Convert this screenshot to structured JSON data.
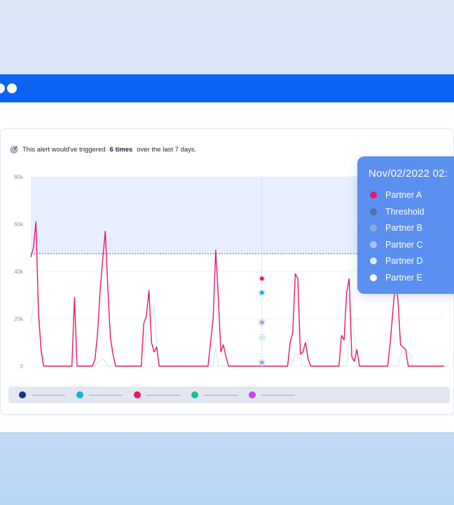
{
  "alert": {
    "prefix": "This alert would've triggered",
    "count": "6 times",
    "suffix": "over the last 7 days.",
    "icon": "target-icon"
  },
  "tooltip": {
    "title": "Nov/02/2022 02:",
    "rows": [
      {
        "label": "Partner A",
        "color": "#e6176e"
      },
      {
        "label": "Threshold",
        "color": "#55719e"
      },
      {
        "label": "Partner B",
        "color": "#8fa8d8"
      },
      {
        "label": "Partner C",
        "color": "#a9c2f4"
      },
      {
        "label": "Partner D",
        "color": "#dce8fc"
      },
      {
        "label": "Partner E",
        "color": "#ffffff"
      }
    ]
  },
  "legend": [
    {
      "color": "#15309a"
    },
    {
      "color": "#11aef0"
    },
    {
      "color": "#e6176e"
    },
    {
      "color": "#13c29c"
    },
    {
      "color": "#c347e8"
    }
  ],
  "chart_data": {
    "type": "line",
    "yticks": [
      "0",
      "20k",
      "40k",
      "60k",
      "80k"
    ],
    "ylim": [
      0,
      80000
    ],
    "threshold": 47500,
    "hover_index": 90,
    "hover_values": [
      37000,
      31000,
      18500,
      12000,
      1500
    ],
    "hover_colors": [
      "#e6176e",
      "#11aef0",
      "#8fa8d8",
      "#c6eedf",
      "#8fa8d8"
    ],
    "series": [
      {
        "name": "Partner A",
        "color": "#e6176e",
        "values": [
          46000,
          50000,
          61000,
          22000,
          7000,
          0,
          0,
          0,
          0,
          0,
          0,
          0,
          0,
          0,
          0,
          0,
          0,
          29000,
          0,
          0,
          0,
          0,
          0,
          0,
          0,
          3000,
          14000,
          32000,
          45000,
          57000,
          33000,
          12000,
          5000,
          0,
          0,
          0,
          0,
          0,
          0,
          0,
          0,
          0,
          0,
          0,
          18000,
          21000,
          32000,
          10000,
          6000,
          8000,
          0,
          0,
          0,
          0,
          0,
          0,
          0,
          0,
          0,
          0,
          0,
          0,
          0,
          0,
          0,
          0,
          0,
          0,
          0,
          0,
          10000,
          20000,
          49000,
          30000,
          6000,
          9000,
          4000,
          0,
          0,
          0,
          0,
          0,
          0,
          0,
          0,
          0,
          0,
          0,
          0,
          0,
          0,
          0,
          0,
          0,
          0,
          0,
          0,
          0,
          0,
          0,
          0,
          10000,
          14000,
          39000,
          37000,
          5000,
          6000,
          10000,
          3000,
          0,
          0,
          0,
          0,
          0,
          0,
          0,
          0,
          0,
          0,
          0,
          0,
          13000,
          11000,
          31000,
          37000,
          4000,
          2000,
          7000,
          0,
          0,
          0,
          0,
          0,
          0,
          0,
          0,
          0,
          0,
          0,
          0,
          10000,
          23000,
          36000,
          28000,
          9000,
          8000,
          7000,
          0,
          0,
          0,
          0,
          0,
          0,
          0,
          0,
          0,
          0,
          0,
          0,
          0,
          0,
          0
        ]
      },
      {
        "name": "Partner C",
        "color": "#c6eedf",
        "values": [
          18000,
          26000,
          30000,
          29000,
          3000,
          0,
          0,
          0,
          0,
          0,
          0,
          0,
          0,
          0,
          0,
          0,
          0,
          0,
          0,
          0,
          0,
          0,
          0,
          0,
          0,
          0,
          2000,
          2000,
          3000,
          2000,
          0,
          0,
          0,
          0,
          0,
          0,
          0,
          0,
          0,
          0,
          0,
          0,
          0,
          0,
          2000,
          16000,
          19000,
          20000,
          25000,
          10000,
          0,
          0,
          0,
          0,
          0,
          0,
          0,
          0,
          0,
          0,
          0,
          0,
          0,
          0,
          0,
          0,
          0,
          0,
          0,
          0,
          0,
          0,
          8000,
          0,
          0,
          0,
          0,
          0,
          0,
          0,
          0,
          0,
          0,
          0,
          0,
          0,
          0,
          0,
          0,
          0,
          0,
          0,
          0,
          0,
          0,
          0,
          0,
          0,
          0,
          0,
          0,
          0,
          2000,
          5000,
          5000,
          3000,
          0,
          0,
          0,
          0,
          0,
          0,
          0,
          0,
          0,
          0,
          0,
          0,
          0,
          0,
          0,
          0,
          0,
          0,
          10000,
          21000,
          12000,
          0,
          0,
          0,
          0,
          0,
          0,
          0,
          0,
          0,
          0,
          0,
          0,
          0,
          0,
          0,
          0,
          0,
          4000,
          8000,
          7000,
          6000,
          4000,
          0,
          0,
          0,
          0,
          0,
          0,
          0,
          0,
          0,
          0,
          0,
          0,
          0,
          0,
          0
        ]
      }
    ]
  }
}
